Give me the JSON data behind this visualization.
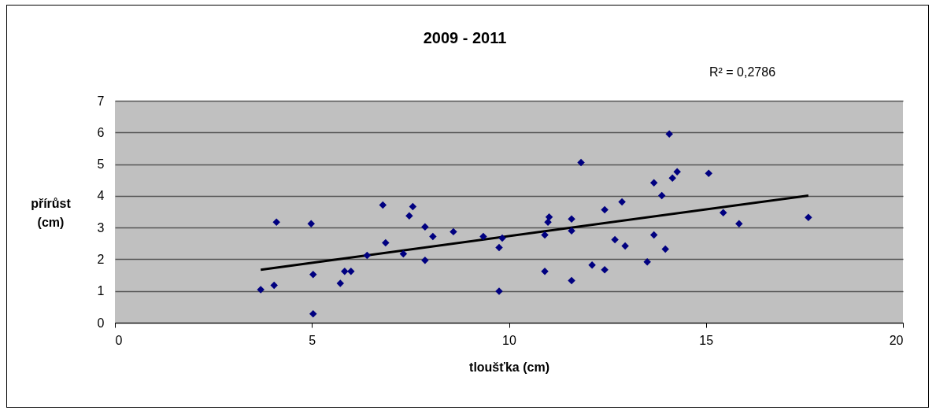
{
  "chart_data": {
    "type": "scatter",
    "title": "2009 - 2011",
    "xlabel": "tloušťka (cm)",
    "ylabel": "přírůst (cm)",
    "annotations": [
      "R² = 0,2786"
    ],
    "xlim": [
      0,
      20
    ],
    "xticks": [
      0,
      5,
      10,
      15,
      20
    ],
    "ylim": [
      0,
      7
    ],
    "yticks": [
      0,
      1,
      2,
      3,
      4,
      5,
      6,
      7
    ],
    "grid": "y",
    "series": [
      {
        "marker": "diamond",
        "color": "#000080",
        "x": [
          3.7,
          4.04,
          4.1,
          4.98,
          5.03,
          5.03,
          5.72,
          5.83,
          5.99,
          6.4,
          6.8,
          6.87,
          7.32,
          7.47,
          7.56,
          7.87,
          7.87,
          8.07,
          8.59,
          9.35,
          9.75,
          9.83,
          9.75,
          10.91,
          10.91,
          10.99,
          11.02,
          11.59,
          11.59,
          11.59,
          11.83,
          12.11,
          12.43,
          12.43,
          12.69,
          12.87,
          12.95,
          13.51,
          13.68,
          13.68,
          13.88,
          13.97,
          14.07,
          14.15,
          14.27,
          15.07,
          15.44,
          15.84,
          17.6
        ],
        "values": [
          1.04,
          1.18,
          3.17,
          3.12,
          1.52,
          0.28,
          1.24,
          1.62,
          1.62,
          2.12,
          3.71,
          2.52,
          2.17,
          3.37,
          3.66,
          3.02,
          1.97,
          2.72,
          2.87,
          2.72,
          2.37,
          2.67,
          0.99,
          2.77,
          1.62,
          3.17,
          3.33,
          3.27,
          2.9,
          1.33,
          5.05,
          1.82,
          3.56,
          1.67,
          2.62,
          3.81,
          2.42,
          1.92,
          4.41,
          2.77,
          4.01,
          2.32,
          5.95,
          4.56,
          4.76,
          4.71,
          3.47,
          3.12,
          3.32
        ]
      },
      {
        "type": "line",
        "marker": "none",
        "color": "#000000",
        "x": [
          3.7,
          17.6
        ],
        "values": [
          1.67,
          4.01
        ]
      }
    ]
  }
}
